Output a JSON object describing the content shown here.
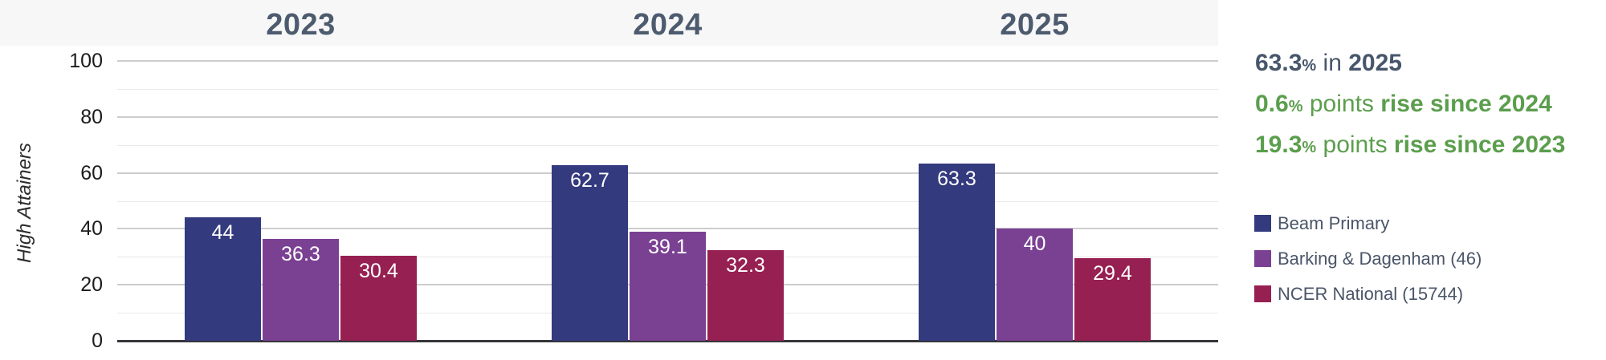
{
  "chart_data": {
    "type": "bar",
    "title": "",
    "ylabel": "High Attainers",
    "categories": [
      "2023",
      "2024",
      "2025"
    ],
    "series": [
      {
        "name": "Beam Primary",
        "color": "#343a7e",
        "values": [
          44,
          62.7,
          63.3
        ],
        "value_labels": [
          "44",
          "62.7",
          "63.3"
        ]
      },
      {
        "name": "Barking & Dagenham (46)",
        "color": "#7a4193",
        "values": [
          36.3,
          39.1,
          40
        ],
        "value_labels": [
          "36.3",
          "39.1",
          "40"
        ]
      },
      {
        "name": "NCER National (15744)",
        "color": "#962052",
        "values": [
          30.4,
          32.3,
          29.4
        ],
        "value_labels": [
          "30.4",
          "32.3",
          "29.4"
        ]
      }
    ],
    "y_axis": {
      "ticks": [
        0,
        20,
        40,
        60,
        80,
        100
      ],
      "minor_ticks": [
        10,
        30,
        50,
        70,
        90
      ],
      "range": [
        0,
        100
      ]
    },
    "grid": "horizontal",
    "legend_position": "right",
    "value_labels_inside_bars": true
  },
  "ylabel": "High Attainers",
  "stats": {
    "lines": [
      {
        "color": "#47566b",
        "parts": [
          {
            "t": "63.3",
            "b": true
          },
          {
            "t": "%",
            "b": true,
            "small": true
          },
          {
            "t": " in ",
            "b": false
          },
          {
            "t": "2025",
            "b": true
          }
        ]
      },
      {
        "color": "#5b9e4d",
        "parts": [
          {
            "t": "0.6",
            "b": true
          },
          {
            "t": "%",
            "b": true,
            "small": true
          },
          {
            "t": " points ",
            "b": false
          },
          {
            "t": "rise since 2024",
            "b": true
          }
        ]
      },
      {
        "color": "#5b9e4d",
        "parts": [
          {
            "t": "19.3",
            "b": true
          },
          {
            "t": "%",
            "b": true,
            "small": true
          },
          {
            "t": " points ",
            "b": false
          },
          {
            "t": "rise since 2023",
            "b": true
          }
        ]
      }
    ]
  },
  "colors": {
    "header_band": "#f7f7f8",
    "year_header_text": "#4d5b6e",
    "slate_text": "#47566b",
    "green_text": "#5b9e4d",
    "legend_text": "#4a5568",
    "major_gridline": "#cdcdcd",
    "minor_gridline": "#e9e9e9",
    "axis_line": "#35353a"
  }
}
